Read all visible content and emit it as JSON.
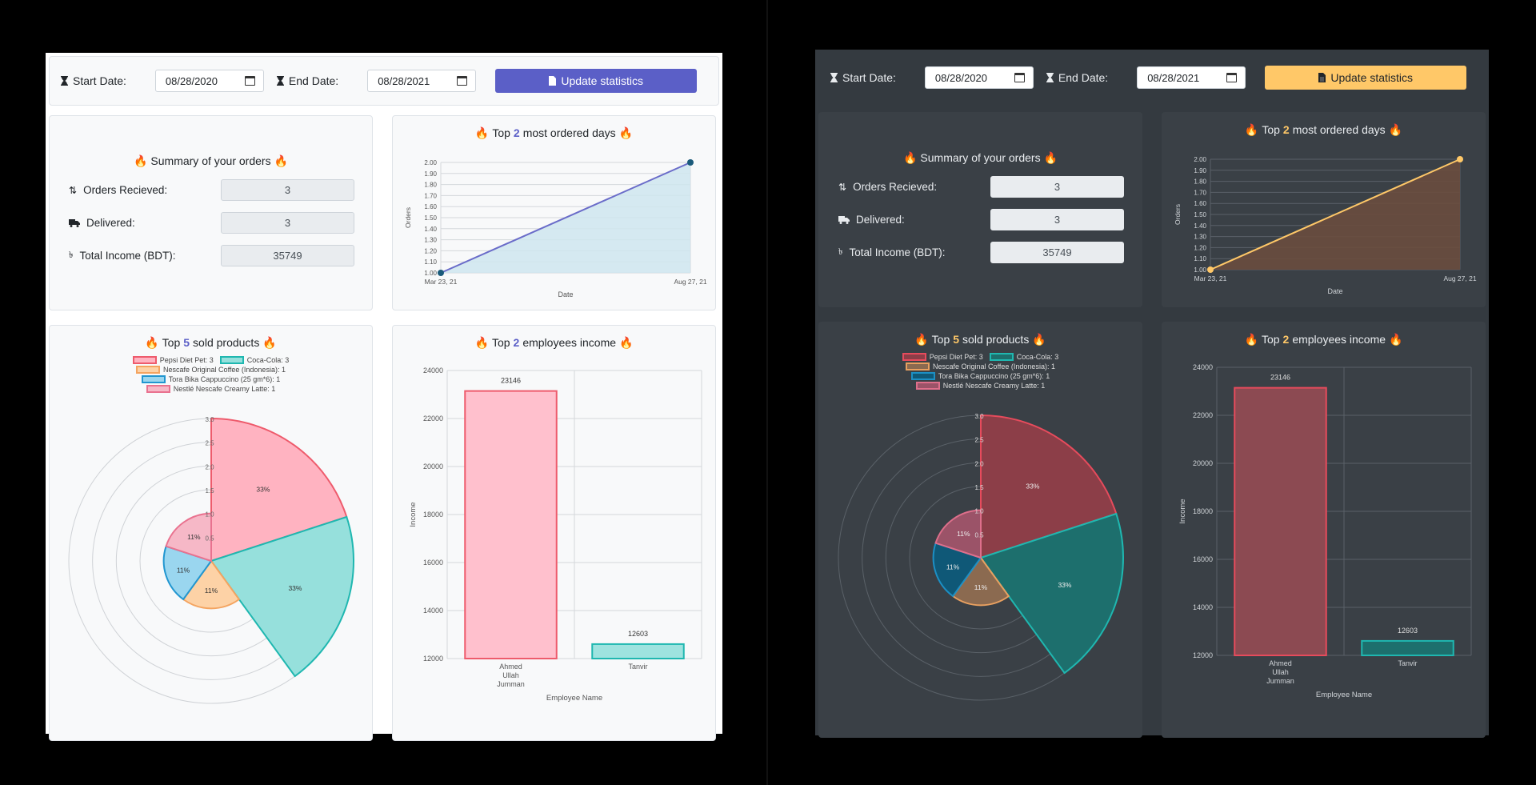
{
  "toolbar": {
    "start_label": "Start Date:",
    "start_value": "08/28/2020",
    "end_label": "End Date:",
    "end_value": "08/28/2021",
    "update_label": "Update statistics"
  },
  "summary": {
    "title_text": "Summary of your orders",
    "orders_label": "Orders Recieved:",
    "orders_value": "3",
    "delivered_label": "Delivered:",
    "delivered_value": "3",
    "income_label": "Total Income (BDT):",
    "income_value": "35749"
  },
  "titles": {
    "days_pre": "Top",
    "days_num": "2",
    "days_post": "most ordered days",
    "products_pre": "Top",
    "products_num": "5",
    "products_post": "sold products",
    "employees_pre": "Top",
    "employees_num": "2",
    "employees_post": "employees income"
  },
  "icons": {
    "hourglass": "hourglass-icon",
    "file": "file-icon",
    "sort": "sort-icon",
    "truck": "truck-icon",
    "taka": "taka-icon",
    "flame": "flame-icon",
    "calendar": "calendar-icon"
  },
  "themes": {
    "light": {
      "accent": "#5b5fc7",
      "line": "#6a6cc9",
      "area": "#cfe6ef",
      "point": "#1a5a7a",
      "button": "#5b5fc7"
    },
    "dark": {
      "accent": "#ffc868",
      "line": "#ffc868",
      "area": "#6a4d3e",
      "point": "#ffc868",
      "button": "#ffc868"
    }
  },
  "chart_data": [
    {
      "type": "line",
      "x": [
        "Mar 23, 21",
        "Aug 27, 21"
      ],
      "values": [
        1,
        2
      ],
      "xlabel": "Date",
      "ylabel": "Orders",
      "ylim": [
        1,
        2
      ],
      "yticks": [
        "1.00",
        "1.10",
        "1.20",
        "1.30",
        "1.40",
        "1.50",
        "1.60",
        "1.70",
        "1.80",
        "1.90",
        "2.00"
      ],
      "grid": true
    },
    {
      "type": "polarArea",
      "categories": [
        "Pepsi Diet Pet",
        "Coca-Cola",
        "Nescafe Original Coffee (Indonesia)",
        "Tora Bika Cappuccino (25 gm*6)",
        "Nestlé Nescafe Creamy Latte"
      ],
      "values": [
        3,
        3,
        1,
        1,
        1
      ],
      "legend": [
        "Pepsi Diet Pet: 3",
        "Coca-Cola: 3",
        "Nescafe Original Coffee (Indonesia): 1",
        "Tora Bika Cappuccino (25 gm*6): 1",
        "Nestlé Nescafe Creamy Latte: 1"
      ],
      "percent_labels": [
        "33%",
        "33%",
        "11%",
        "11%",
        "11%"
      ],
      "rticks": [
        "0.5",
        "1.0",
        "1.5",
        "2.0",
        "2.5",
        "3.0"
      ],
      "rlim": [
        0,
        3
      ],
      "colors_light": [
        [
          "#ffb3c1",
          "#ee5b6c"
        ],
        [
          "#96e0dc",
          "#1fb7b0"
        ],
        [
          "#fdd2a6",
          "#f4a460"
        ],
        [
          "#9ad6ef",
          "#2196d0"
        ],
        [
          "#f6b8c7",
          "#e9728f"
        ]
      ],
      "colors_dark": [
        [
          "#8c3e48",
          "#e64b5c"
        ],
        [
          "#1d6f6d",
          "#1fb7b0"
        ],
        [
          "#8b6a50",
          "#e8a060"
        ],
        [
          "#0f5877",
          "#1c8fc4"
        ],
        [
          "#9b5368",
          "#de6f8b"
        ]
      ],
      "legend_position": "top"
    },
    {
      "type": "bar",
      "categories": [
        [
          "Ahmed",
          "Ullah",
          "Jumman"
        ],
        [
          "Tanvir"
        ]
      ],
      "values": [
        23146,
        12603
      ],
      "data_labels": [
        "23146",
        "12603"
      ],
      "xlabel": "Employee Name",
      "ylabel": "Income",
      "ylim": [
        12000,
        24000
      ],
      "yticks": [
        "12000",
        "14000",
        "16000",
        "18000",
        "20000",
        "22000",
        "24000"
      ],
      "colors_light": [
        [
          "#ffc0cd",
          "#ee5b6c"
        ],
        [
          "#9ee3df",
          "#1fb7b0"
        ]
      ],
      "colors_dark": [
        [
          "#8c4a52",
          "#e64b5c"
        ],
        [
          "#1d6f6d",
          "#1fb7b0"
        ]
      ],
      "grid": true
    }
  ]
}
